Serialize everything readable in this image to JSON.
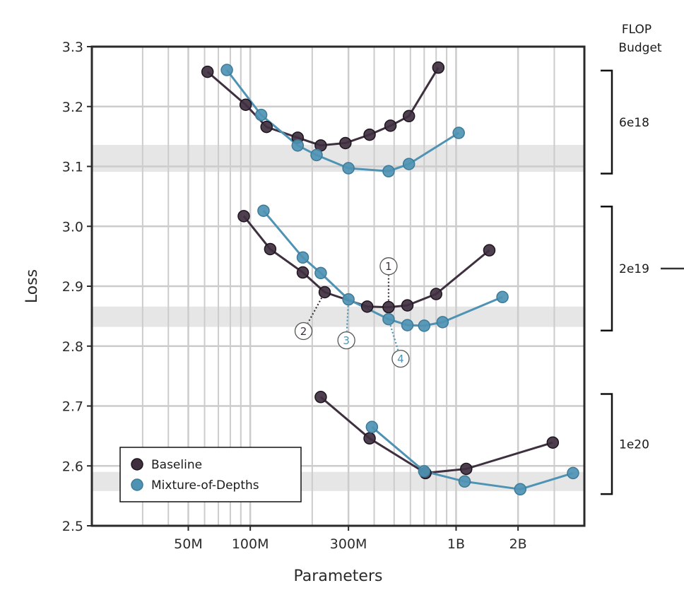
{
  "chart_data": {
    "type": "line",
    "xlabel": "Parameters",
    "ylabel": "Loss",
    "xscale": "log",
    "xlim": [
      17000000,
      4200000000
    ],
    "ylim": [
      2.5,
      3.3
    ],
    "yticks": [
      2.5,
      2.6,
      2.7,
      2.8,
      2.9,
      3.0,
      3.1,
      3.2,
      3.3
    ],
    "ytick_labels": [
      "2.5",
      "2.6",
      "2.7",
      "2.8",
      "2.9",
      "3.0",
      "3.1",
      "3.2",
      "3.3"
    ],
    "xticks": [
      {
        "value": 50000000,
        "label": "50M"
      },
      {
        "value": 100000000,
        "label": "100M"
      },
      {
        "value": 300000000,
        "label": "300M"
      },
      {
        "value": 1000000000,
        "label": "1B"
      },
      {
        "value": 2000000000,
        "label": "2B"
      }
    ],
    "minor_x_gridlines": [
      30000000,
      40000000,
      60000000,
      70000000,
      80000000,
      90000000,
      200000000,
      400000000,
      500000000,
      600000000,
      700000000,
      800000000,
      900000000,
      3000000000
    ],
    "grid": true,
    "legend": {
      "position": "lower-left",
      "entries": [
        "Baseline",
        "Mixture-of-Depths"
      ]
    },
    "colors": {
      "Baseline": "#3f3040",
      "Mixture-of-Depths": "#4e93b3",
      "band": "#e6e6e6",
      "grid": "#cccccc"
    },
    "side_title": [
      "FLOP",
      "Budget"
    ],
    "budgets": [
      {
        "label": "6e18",
        "y_range": [
          3.088,
          3.26
        ],
        "band": [
          3.091,
          3.136
        ],
        "baseline": {
          "x": [
            62000000,
            95000000,
            120000000,
            170000000,
            220000000,
            290000000,
            380000000,
            480000000,
            590000000,
            820000000
          ],
          "y": [
            3.258,
            3.203,
            3.166,
            3.148,
            3.135,
            3.139,
            3.153,
            3.168,
            3.184,
            3.265
          ]
        },
        "mod": {
          "x": [
            77000000,
            113000000,
            170000000,
            210000000,
            300000000,
            470000000,
            590000000,
            1030000000
          ],
          "y": [
            3.261,
            3.186,
            3.135,
            3.119,
            3.097,
            3.092,
            3.104,
            3.156
          ]
        }
      },
      {
        "label": "2e19",
        "y_range": [
          2.826,
          3.033
        ],
        "band": [
          2.832,
          2.866
        ],
        "baseline": {
          "x": [
            93000000,
            125000000,
            180000000,
            230000000,
            370000000,
            470000000,
            580000000,
            800000000,
            1450000000
          ],
          "y": [
            3.017,
            2.962,
            2.923,
            2.89,
            2.866,
            2.865,
            2.868,
            2.887,
            2.96
          ]
        },
        "mod": {
          "x": [
            116000000,
            180000000,
            220000000,
            300000000,
            470000000,
            580000000,
            700000000,
            860000000,
            1680000000
          ],
          "y": [
            3.026,
            2.948,
            2.922,
            2.878,
            2.845,
            2.835,
            2.834,
            2.84,
            2.882
          ]
        },
        "annotations": [
          {
            "num": "1",
            "series": "Baseline",
            "ai": 5,
            "text_offset": [
              0,
              -58
            ],
            "color": "#3f3040"
          },
          {
            "num": "2",
            "series": "Baseline",
            "ai": 3,
            "text_offset": [
              -30,
              55
            ],
            "color": "#3f3040"
          },
          {
            "num": "3",
            "series": "Mixture-of-Depths",
            "ai": 3,
            "text_offset": [
              -3,
              58
            ],
            "color": "#4e93b3"
          },
          {
            "num": "4",
            "series": "Mixture-of-Depths",
            "ai": 4,
            "text_offset": [
              17,
              56
            ],
            "color": "#4e93b3"
          }
        ]
      },
      {
        "label": "1e20",
        "y_range": [
          2.553,
          2.72
        ],
        "band": [
          2.558,
          2.59
        ],
        "baseline": {
          "x": [
            220000000,
            380000000,
            710000000,
            1120000000,
            2950000000
          ],
          "y": [
            2.715,
            2.646,
            2.588,
            2.595,
            2.639
          ]
        },
        "mod": {
          "x": [
            390000000,
            700000000,
            1100000000,
            2050000000,
            3700000000
          ],
          "y": [
            2.665,
            2.591,
            2.574,
            2.561,
            2.588
          ]
        }
      }
    ]
  }
}
